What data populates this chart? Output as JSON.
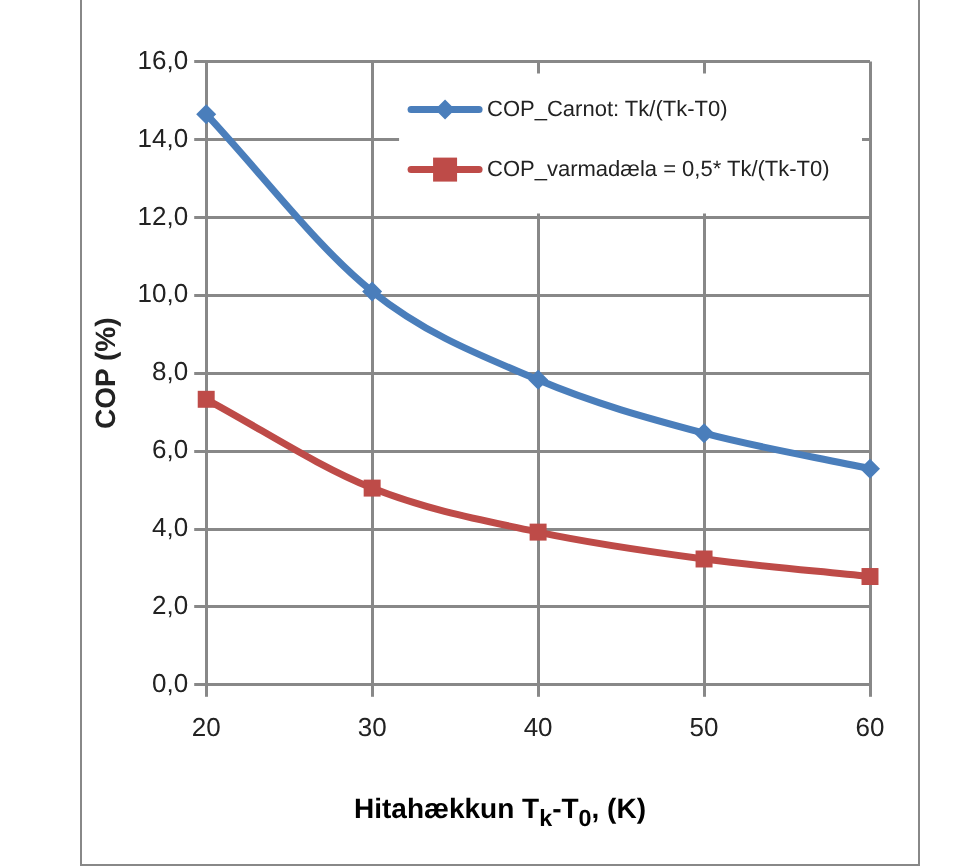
{
  "chart_data": {
    "type": "line",
    "xlabel": "Hitahækkun T$_{k}$-T$_{0}$, (K)",
    "ylabel": "COP (%)",
    "x": [
      20,
      30,
      40,
      50,
      60
    ],
    "series": [
      {
        "name": "COP_Carnot: Tk/(Tk-T0)",
        "color": "#4a7ebb",
        "marker": "diamond",
        "values": [
          14.65,
          10.1,
          7.83,
          6.46,
          5.55
        ]
      },
      {
        "name": "COP_varmadæla = 0,5* Tk/(Tk-T0)",
        "color": "#be4b48",
        "marker": "square",
        "values": [
          7.33,
          5.05,
          3.92,
          3.23,
          2.78
        ]
      }
    ],
    "xlim": [
      20,
      60
    ],
    "xticks": [
      20,
      30,
      40,
      50,
      60
    ],
    "ylim": [
      0,
      16
    ],
    "yticks": [
      {
        "value": 0,
        "label": "0,0"
      },
      {
        "value": 2,
        "label": "2,0"
      },
      {
        "value": 4,
        "label": "4,0"
      },
      {
        "value": 6,
        "label": "6,0"
      },
      {
        "value": 8,
        "label": "8,0"
      },
      {
        "value": 10,
        "label": "10,0"
      },
      {
        "value": 12,
        "label": "12,0"
      },
      {
        "value": 14,
        "label": "14,0"
      },
      {
        "value": 16,
        "label": "16,0"
      }
    ],
    "grid": true,
    "legend": "top right",
    "line_style": "solid"
  }
}
